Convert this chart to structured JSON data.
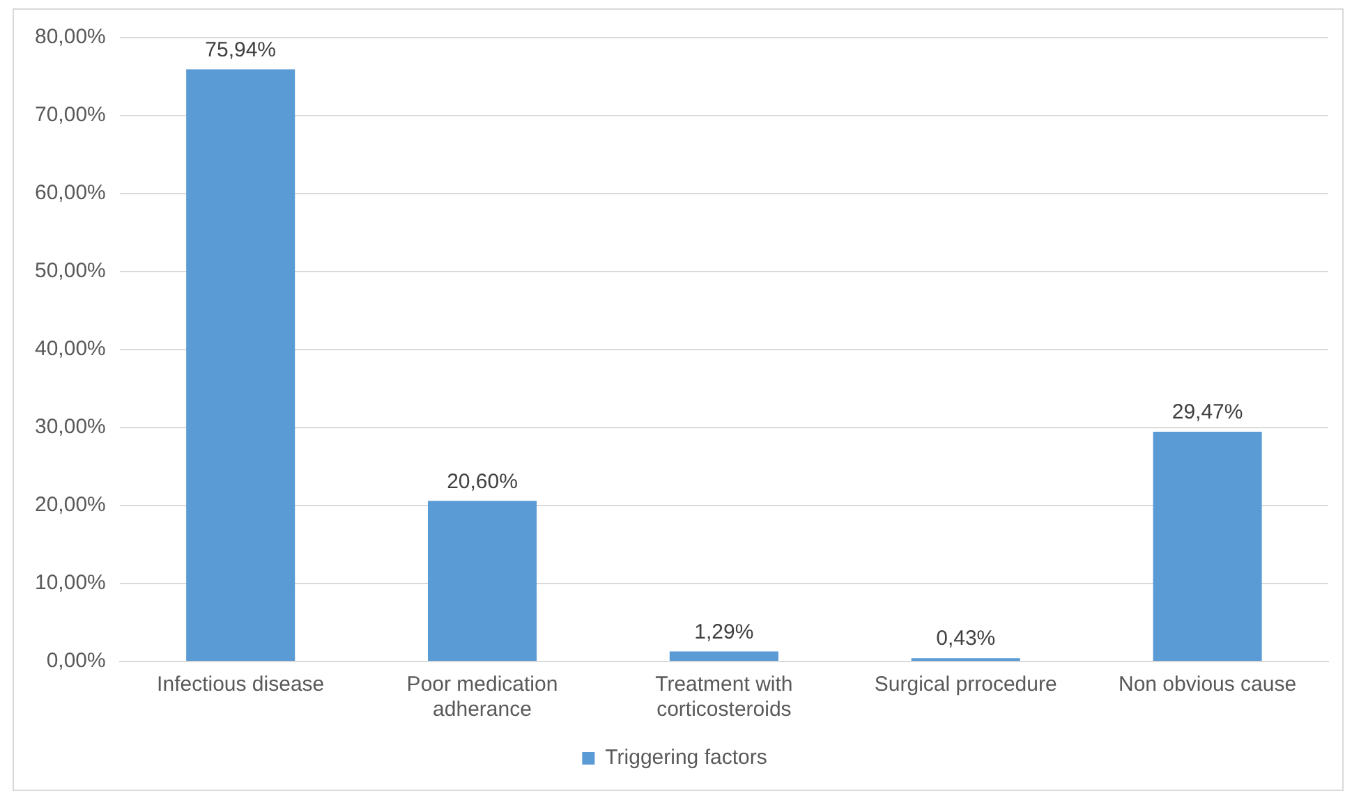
{
  "chart_data": {
    "type": "bar",
    "categories": [
      "Infectious disease",
      "Poor medication adherance",
      "Treatment with corticosteroids",
      "Surgical prrocedure",
      "Non obvious cause"
    ],
    "series": [
      {
        "name": "Triggering factors",
        "color": "#5b9bd5",
        "values": [
          75.94,
          20.6,
          1.29,
          0.43,
          29.47
        ],
        "value_labels": [
          "75,94%",
          "20,60%",
          "1,29%",
          "0,43%",
          "29,47%"
        ]
      }
    ],
    "ylim": [
      0,
      80
    ],
    "yticks": [
      {
        "value": 0,
        "label": "0,00%"
      },
      {
        "value": 10,
        "label": "10,00%"
      },
      {
        "value": 20,
        "label": "20,00%"
      },
      {
        "value": 30,
        "label": "30,00%"
      },
      {
        "value": 40,
        "label": "40,00%"
      },
      {
        "value": 50,
        "label": "50,00%"
      },
      {
        "value": 60,
        "label": "60,00%"
      },
      {
        "value": 70,
        "label": "70,00%"
      },
      {
        "value": 80,
        "label": "80,00%"
      }
    ],
    "grid": "y",
    "legend": "bottom"
  }
}
